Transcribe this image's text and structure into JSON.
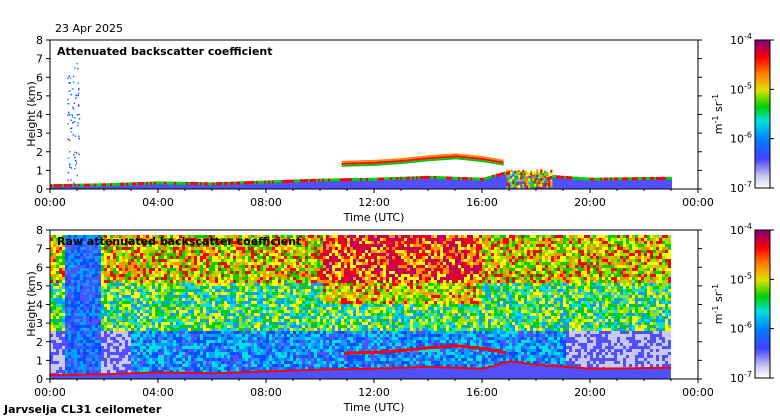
{
  "header": {
    "date": "23 Apr 2025"
  },
  "footer": {
    "site": "Jarvselja CL31 ceilometer"
  },
  "chart_data": [
    {
      "type": "heatmap",
      "title": "Attenuated backscatter coefficient",
      "xlabel": "Time (UTC)",
      "ylabel": "Height (km)",
      "xlim_hours": [
        0,
        24
      ],
      "ylim": [
        0,
        8
      ],
      "x_ticks": [
        "00:00",
        "04:00",
        "08:00",
        "12:00",
        "16:00",
        "20:00",
        "00:00"
      ],
      "y_ticks": [
        "0",
        "1",
        "2",
        "3",
        "4",
        "5",
        "6",
        "7",
        "8"
      ],
      "data_end_hour": 23,
      "colorbar": {
        "label": "m-1 sr-1",
        "scale": "log",
        "range": [
          1e-07,
          0.0001
        ],
        "ticks": [
          "10^-4",
          "10^-5",
          "10^-6",
          "10^-7"
        ]
      },
      "features": {
        "surface_layer_top_km": [
          [
            0,
            0.15
          ],
          [
            2,
            0.2
          ],
          [
            4,
            0.3
          ],
          [
            6,
            0.25
          ],
          [
            8,
            0.35
          ],
          [
            10,
            0.45
          ],
          [
            12,
            0.5
          ],
          [
            14,
            0.6
          ],
          [
            16,
            0.5
          ],
          [
            17,
            0.9
          ],
          [
            18,
            0.7
          ],
          [
            20,
            0.5
          ],
          [
            23,
            0.55
          ]
        ],
        "cloud_layer": {
          "start_hour": 10.8,
          "end_hour": 16.8,
          "height_km": [
            [
              10.8,
              1.3
            ],
            [
              12,
              1.35
            ],
            [
              13,
              1.45
            ],
            [
              14,
              1.6
            ],
            [
              15,
              1.7
            ],
            [
              16,
              1.55
            ],
            [
              16.8,
              1.35
            ]
          ]
        },
        "precipitation_column": {
          "hour": 1.0,
          "top_km": 6.8
        }
      }
    },
    {
      "type": "heatmap",
      "title": "Raw attenuated backscatter coefficient",
      "xlabel": "Time (UTC)",
      "ylabel": "Height (km)",
      "xlim_hours": [
        0,
        24
      ],
      "ylim": [
        0,
        8
      ],
      "x_ticks": [
        "00:00",
        "04:00",
        "08:00",
        "12:00",
        "16:00",
        "20:00",
        "00:00"
      ],
      "y_ticks": [
        "0",
        "1",
        "2",
        "3",
        "4",
        "5",
        "6",
        "7",
        "8"
      ],
      "data_end_hour": 23,
      "colorbar": {
        "label": "m-1 sr-1",
        "scale": "log",
        "range": [
          1e-07,
          0.0001
        ],
        "ticks": [
          "10^-4",
          "10^-5",
          "10^-6",
          "10^-7"
        ]
      }
    }
  ]
}
